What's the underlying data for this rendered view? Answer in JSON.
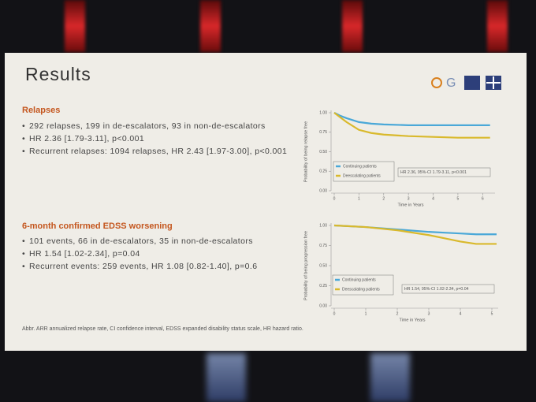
{
  "slide": {
    "title": "Results",
    "sections": [
      {
        "heading": "Relapses",
        "bullets": [
          "292 relapses, 199 in de-escalators, 93 in non-de-escalators",
          "HR 2.36 [1.79-3.11], p<0.001",
          "Recurrent relapses: 1094 relapses, HR 2.43 [1.97-3.00], p<0.001"
        ]
      },
      {
        "heading": "6-month confirmed EDSS worsening",
        "bullets": [
          "101 events, 66 in de-escalators, 35 in non-de-escalators",
          "HR 1.54 [1.02-2.34], p=0.04",
          "Recurrent events: 259 events, HR 1.08 [0.82-1.40], p=0.6"
        ]
      }
    ],
    "footnote": "Abbr. ARR annualized relapse rate, CI confidence interval, EDSS expanded disability status scale, HR hazard ratio."
  },
  "chart_data": [
    {
      "type": "line",
      "y_label": "Probability of being relapse free",
      "x_label": "Time in Years",
      "annotation": "HR 2.36, 95%-CI 1.79-3.11, p<0.001",
      "x": [
        0,
        0.25,
        0.5,
        1,
        1.5,
        2,
        3,
        4,
        5,
        6,
        6.3
      ],
      "series": [
        {
          "name": "Continuing patients",
          "color": "#4aa8d8",
          "values": [
            1.0,
            0.96,
            0.93,
            0.88,
            0.86,
            0.85,
            0.84,
            0.84,
            0.84,
            0.84,
            0.84
          ]
        },
        {
          "name": "Deescalating patients",
          "color": "#d9b92c",
          "values": [
            1.0,
            0.94,
            0.88,
            0.78,
            0.74,
            0.72,
            0.7,
            0.69,
            0.68,
            0.68,
            0.68
          ]
        }
      ],
      "xlim": [
        0,
        6.5
      ],
      "ylim": [
        0,
        1
      ],
      "xticks": [
        0,
        1,
        2,
        3,
        4,
        5,
        6
      ],
      "yticks": [
        {
          "value": 0,
          "label": "0.00"
        },
        {
          "value": 0.25,
          "label": "0.25"
        },
        {
          "value": 0.5,
          "label": "0.50"
        },
        {
          "value": 0.75,
          "label": "0.75"
        },
        {
          "value": 1,
          "label": "1.00"
        }
      ]
    },
    {
      "type": "line",
      "y_label": "Probability of being progression free",
      "x_label": "Time in Years",
      "annotation": "HR 1.54, 95%-CI 1.02-2.34, p=0.04",
      "x": [
        0,
        1,
        2,
        3,
        3.5,
        4,
        4.5,
        5,
        5.15
      ],
      "series": [
        {
          "name": "Continuing patients",
          "color": "#4aa8d8",
          "values": [
            1.0,
            0.98,
            0.95,
            0.92,
            0.91,
            0.9,
            0.89,
            0.89,
            0.89
          ]
        },
        {
          "name": "Deescalating patients",
          "color": "#d9b92c",
          "values": [
            1.0,
            0.98,
            0.94,
            0.88,
            0.84,
            0.8,
            0.77,
            0.77,
            0.77
          ]
        }
      ],
      "xlim": [
        0,
        5.2
      ],
      "ylim": [
        0,
        1
      ],
      "xticks": [
        0,
        1,
        2,
        3,
        4,
        5
      ],
      "yticks": [
        {
          "value": 0,
          "label": "0.00"
        },
        {
          "value": 0.25,
          "label": "0.25"
        },
        {
          "value": 0.5,
          "label": "0.50"
        },
        {
          "value": 0.75,
          "label": "0.75"
        },
        {
          "value": 1,
          "label": "1.00"
        }
      ]
    }
  ]
}
